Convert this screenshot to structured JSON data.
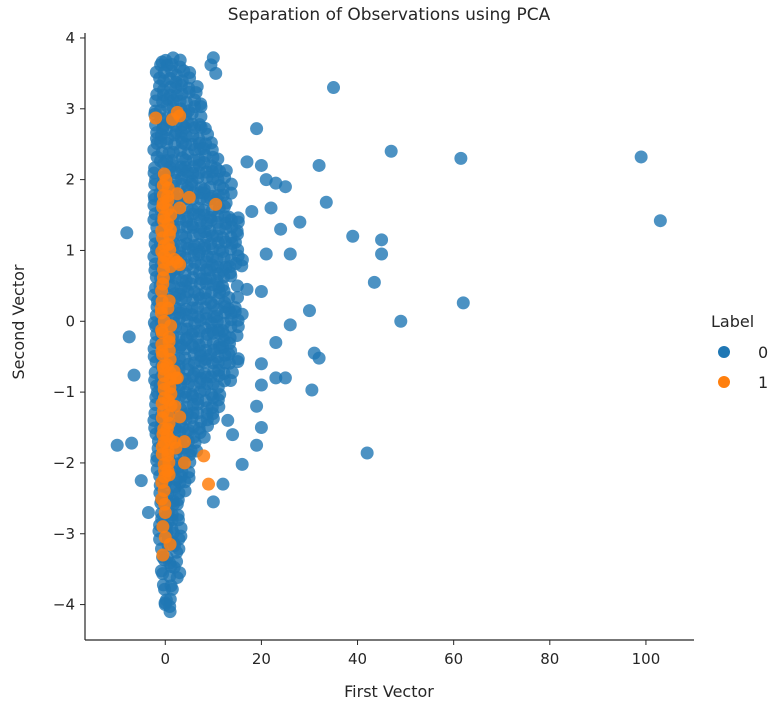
{
  "chart_data": {
    "type": "scatter",
    "title": "Separation of Observations using PCA",
    "xlabel": "First Vector",
    "ylabel": "Second Vector",
    "xlim": [
      -16.7,
      110
    ],
    "ylim": [
      -4.5,
      4.07
    ],
    "xticks": [
      0,
      20,
      40,
      60,
      80,
      100
    ],
    "xtick_labels": [
      "0",
      "20",
      "40",
      "60",
      "80",
      "100"
    ],
    "yticks": [
      4,
      3,
      2,
      1,
      0,
      -1,
      -2,
      -3,
      -4
    ],
    "ytick_labels": [
      "4",
      "3",
      "2",
      "1",
      "0",
      "−1",
      "−2",
      "−3",
      "−4"
    ],
    "grid": false,
    "legend": {
      "title": "Label",
      "placement": "right",
      "entries": [
        "0",
        "1"
      ]
    },
    "series": [
      {
        "name": "0",
        "color": "#1f77b4",
        "dense_core": [
          [
            3.7,
            -1,
            4
          ],
          [
            3.5,
            -1.5,
            5
          ],
          [
            3.3,
            -1.5,
            7
          ],
          [
            3.1,
            -2,
            8
          ],
          [
            2.9,
            -2,
            8
          ],
          [
            2.7,
            -2,
            9
          ],
          [
            2.5,
            -2,
            10
          ],
          [
            2.3,
            -2,
            12
          ],
          [
            2.1,
            -2,
            13
          ],
          [
            1.9,
            -2,
            14
          ],
          [
            1.7,
            -2,
            13
          ],
          [
            1.5,
            -2,
            15
          ],
          [
            1.3,
            -2,
            16
          ],
          [
            1.1,
            -2,
            16
          ],
          [
            0.9,
            -2,
            17
          ],
          [
            0.7,
            -2,
            14
          ],
          [
            0.5,
            -2,
            13
          ],
          [
            0.3,
            -2,
            15
          ],
          [
            0.1,
            -2,
            16
          ],
          [
            -0.1,
            -2,
            15
          ],
          [
            -0.3,
            -2,
            14
          ],
          [
            -0.5,
            -2,
            16
          ],
          [
            -0.7,
            -2,
            14
          ],
          [
            -0.9,
            -2,
            12
          ],
          [
            -1.1,
            -2,
            11
          ],
          [
            -1.3,
            -2,
            10
          ],
          [
            -1.5,
            -2,
            9
          ],
          [
            -1.7,
            -1.5,
            7
          ],
          [
            -1.9,
            -1.5,
            6
          ],
          [
            -2.1,
            -1.5,
            5
          ],
          [
            -2.3,
            -1,
            5
          ],
          [
            -2.5,
            -1,
            4
          ],
          [
            -2.7,
            -1,
            4
          ],
          [
            -2.9,
            -1,
            4
          ],
          [
            -3.1,
            -1,
            3
          ],
          [
            -3.3,
            -0.5,
            3
          ],
          [
            -3.5,
            -0.5,
            2.5
          ],
          [
            -3.7,
            0,
            2
          ],
          [
            -3.9,
            0,
            1.5
          ]
        ],
        "points": [
          [
            35,
            3.3
          ],
          [
            47,
            2.4
          ],
          [
            61.5,
            2.3
          ],
          [
            99,
            2.32
          ],
          [
            103,
            1.42
          ],
          [
            32,
            2.2
          ],
          [
            33.5,
            1.68
          ],
          [
            28,
            1.4
          ],
          [
            39,
            1.2
          ],
          [
            45,
            1.15
          ],
          [
            45,
            0.95
          ],
          [
            43.5,
            0.55
          ],
          [
            62,
            0.26
          ],
          [
            49,
            0
          ],
          [
            30,
            0.15
          ],
          [
            26,
            -0.05
          ],
          [
            31,
            -0.45
          ],
          [
            32,
            -0.52
          ],
          [
            30.5,
            -0.97
          ],
          [
            42,
            -1.86
          ],
          [
            25,
            -0.8
          ],
          [
            23,
            -0.3
          ],
          [
            20,
            -0.9
          ],
          [
            19,
            -1.2
          ],
          [
            19,
            -1.75
          ],
          [
            16,
            -2.02
          ],
          [
            10,
            -2.55
          ],
          [
            -10,
            -1.75
          ],
          [
            -7,
            -1.72
          ],
          [
            -8,
            1.25
          ],
          [
            -7.5,
            -0.22
          ],
          [
            -6.5,
            -0.76
          ],
          [
            -5,
            -2.25
          ],
          [
            -3.5,
            -2.7
          ],
          [
            10,
            3.72
          ],
          [
            10.5,
            3.5
          ],
          [
            9.5,
            3.62
          ],
          [
            19,
            2.72
          ],
          [
            24,
            1.3
          ],
          [
            21,
            0.95
          ],
          [
            15,
            0.5
          ],
          [
            17,
            0.45
          ],
          [
            20,
            0.42
          ],
          [
            13,
            -1.4
          ],
          [
            20,
            -1.5
          ],
          [
            12,
            -2.3
          ],
          [
            3,
            -3.55
          ],
          [
            1,
            -4.1
          ],
          [
            0,
            -4.0
          ],
          [
            21,
            2.0
          ],
          [
            23,
            1.95
          ],
          [
            25,
            1.9
          ],
          [
            22,
            1.6
          ],
          [
            18,
            1.55
          ],
          [
            26,
            0.95
          ],
          [
            17,
            2.25
          ],
          [
            20,
            2.2
          ],
          [
            16,
            0.1
          ],
          [
            20,
            -0.6
          ],
          [
            23,
            -0.8
          ],
          [
            14,
            -1.6
          ]
        ]
      },
      {
        "name": "1",
        "color": "#ff7f0e",
        "dense_core": [
          [
            2.1,
            0,
            1
          ],
          [
            1.9,
            -0.5,
            1.5
          ],
          [
            1.7,
            -0.5,
            2
          ],
          [
            1.5,
            -0.5,
            1.5
          ],
          [
            1.3,
            -0.5,
            2
          ],
          [
            1.1,
            -0.5,
            1
          ],
          [
            0.9,
            -0.5,
            2.5
          ],
          [
            0.7,
            -0.5,
            0.5
          ],
          [
            0.5,
            -0.5,
            0.5
          ],
          [
            0.3,
            -0.5,
            1
          ],
          [
            0.1,
            -0.5,
            0.5
          ],
          [
            -0.1,
            -0.5,
            1
          ],
          [
            -0.3,
            -0.5,
            1.5
          ],
          [
            -0.5,
            -0.5,
            1.5
          ],
          [
            -0.7,
            -0.5,
            2.5
          ],
          [
            -0.9,
            -0.5,
            2
          ],
          [
            -1.1,
            -0.5,
            2
          ],
          [
            -1.3,
            -0.5,
            2
          ],
          [
            -1.5,
            -0.5,
            2
          ],
          [
            -1.7,
            -0.5,
            3
          ],
          [
            -1.9,
            -0.5,
            2
          ],
          [
            -2.1,
            -0.5,
            1
          ],
          [
            -2.3,
            -0.5,
            0.5
          ],
          [
            -2.5,
            -0.5,
            0.5
          ]
        ],
        "points": [
          [
            -2,
            2.87
          ],
          [
            1.5,
            2.85
          ],
          [
            2.5,
            2.95
          ],
          [
            3,
            2.9
          ],
          [
            2.5,
            1.8
          ],
          [
            5,
            1.75
          ],
          [
            10.5,
            1.65
          ],
          [
            3,
            1.6
          ],
          [
            3,
            0.8
          ],
          [
            2.5,
            -0.8
          ],
          [
            4,
            -1.7
          ],
          [
            8,
            -1.9
          ],
          [
            4,
            -2.0
          ],
          [
            9,
            -2.3
          ],
          [
            -0.5,
            -2.9
          ],
          [
            0,
            -3.05
          ],
          [
            1,
            -3.15
          ],
          [
            -0.5,
            -3.3
          ],
          [
            0,
            -2.7
          ],
          [
            2,
            -1.2
          ],
          [
            3,
            -1.35
          ]
        ]
      }
    ]
  }
}
